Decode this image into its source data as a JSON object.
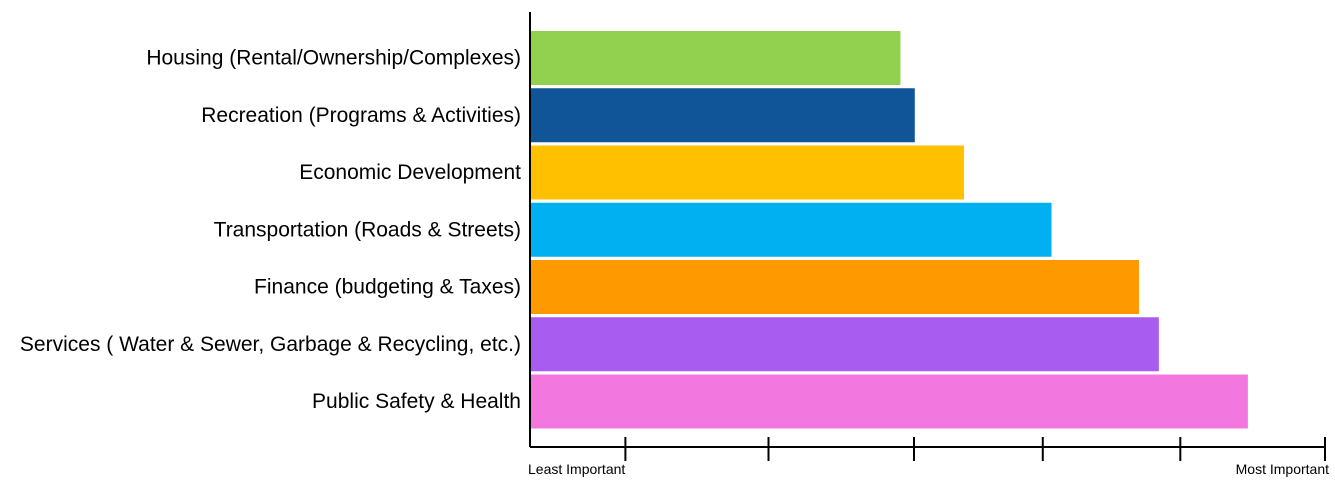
{
  "chart_data": {
    "type": "bar",
    "orientation": "horizontal",
    "categories": [
      "Housing (Rental/Ownership/Complexes)",
      "Recreation (Programs & Activities)",
      "Economic Development",
      "Transportation (Roads  & Streets)",
      "Finance (budgeting & Taxes)",
      "Services ( Water & Sewer, Garbage & Recycling, etc.)",
      "Public Safety & Health"
    ],
    "values": [
      0.466,
      0.484,
      0.546,
      0.656,
      0.766,
      0.791,
      0.903
    ],
    "colors": [
      "#92d050",
      "#0f5597",
      "#ffc000",
      "#00b0f0",
      "#ff9900",
      "#a85cf0",
      "#f278e0"
    ],
    "xlim": [
      0,
      1
    ],
    "x_tick_values": [
      0.12,
      0.3,
      0.483,
      0.645,
      0.818,
      1.0
    ],
    "x_end_labels": {
      "min": "Least Important",
      "max": "Most Important"
    },
    "grid": false,
    "legend": "none"
  }
}
